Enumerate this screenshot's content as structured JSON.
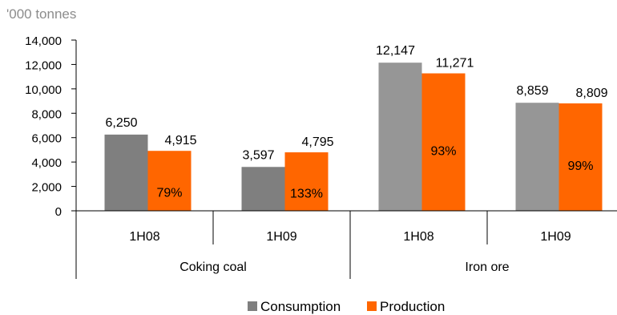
{
  "chart_data": {
    "type": "bar",
    "unit_label": "'000 tonnes",
    "groups": [
      "Coking coal",
      "Iron ore"
    ],
    "categories": [
      "1H08",
      "1H09",
      "1H08",
      "1H09"
    ],
    "category_group": [
      0,
      0,
      1,
      1
    ],
    "series": [
      {
        "name": "Consumption",
        "values": [
          6250,
          3597,
          12147,
          8859
        ],
        "labels": [
          "6,250",
          "3,597",
          "12,147",
          "8,859"
        ]
      },
      {
        "name": "Production",
        "values": [
          4915,
          4795,
          11271,
          8809
        ],
        "labels": [
          "4,915",
          "4,795",
          "11,271",
          "8,809"
        ]
      }
    ],
    "ratio_labels": [
      "79%",
      "133%",
      "93%",
      "99%"
    ],
    "ylim": [
      0,
      14000
    ],
    "yticks": [
      0,
      2000,
      4000,
      6000,
      8000,
      10000,
      12000,
      14000
    ],
    "ytick_labels": [
      "0",
      "2,000",
      "4,000",
      "6,000",
      "8,000",
      "10,000",
      "12,000",
      "14,000"
    ],
    "grid": false,
    "legend_position": "bottom",
    "colors": {
      "consumption": "#969696",
      "consumption_dark": "#7f7f7f",
      "production": "#ff6600"
    }
  }
}
